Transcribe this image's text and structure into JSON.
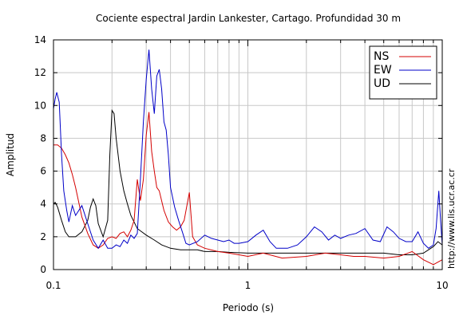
{
  "chart_data": {
    "type": "line",
    "title": "Cociente espectral Jardin Lankester, Cartago. Profundidad 30 m",
    "xlabel": "Periodo (s)",
    "ylabel": "Amplitud",
    "xscale": "log",
    "xlim": [
      0.1,
      10
    ],
    "ylim": [
      0,
      14
    ],
    "x_ticks": [
      "0.1",
      "1",
      "10"
    ],
    "y_ticks": [
      "0",
      "2",
      "4",
      "6",
      "8",
      "10",
      "12",
      "14"
    ],
    "grid": true,
    "legend_position": "top-right",
    "url_text": "http://www.lis.ucr.ac.cr",
    "series": [
      {
        "name": "NS",
        "color": "#d40000",
        "x": [
          0.1,
          0.105,
          0.11,
          0.115,
          0.12,
          0.125,
          0.13,
          0.14,
          0.15,
          0.16,
          0.17,
          0.18,
          0.19,
          0.2,
          0.21,
          0.22,
          0.23,
          0.24,
          0.25,
          0.26,
          0.27,
          0.28,
          0.29,
          0.3,
          0.31,
          0.32,
          0.33,
          0.34,
          0.35,
          0.37,
          0.39,
          0.41,
          0.43,
          0.45,
          0.47,
          0.5,
          0.52,
          0.55,
          0.6,
          0.7,
          0.8,
          0.9,
          1.0,
          1.2,
          1.5,
          2.0,
          2.5,
          3.0,
          3.5,
          4.0,
          5.0,
          6.0,
          7.0,
          8.0,
          9.0,
          10.0
        ],
        "values": [
          7.6,
          7.6,
          7.4,
          7.0,
          6.5,
          5.8,
          5.0,
          3.2,
          2.2,
          1.5,
          1.3,
          1.5,
          1.9,
          2.0,
          1.9,
          2.2,
          2.3,
          2.0,
          2.4,
          3.0,
          5.5,
          4.2,
          5.5,
          8.2,
          9.6,
          7.2,
          6.0,
          5.0,
          4.8,
          3.6,
          2.9,
          2.6,
          2.4,
          2.6,
          3.0,
          4.7,
          2.0,
          1.5,
          1.3,
          1.1,
          1.0,
          0.9,
          0.8,
          1.0,
          0.7,
          0.8,
          1.0,
          0.9,
          0.8,
          0.8,
          0.7,
          0.8,
          1.1,
          0.6,
          0.3,
          0.6
        ]
      },
      {
        "name": "EW",
        "color": "#0000c8",
        "x": [
          0.1,
          0.102,
          0.104,
          0.107,
          0.11,
          0.113,
          0.117,
          0.12,
          0.125,
          0.13,
          0.135,
          0.14,
          0.15,
          0.16,
          0.17,
          0.18,
          0.19,
          0.2,
          0.21,
          0.22,
          0.23,
          0.24,
          0.25,
          0.26,
          0.27,
          0.28,
          0.29,
          0.3,
          0.31,
          0.32,
          0.33,
          0.34,
          0.35,
          0.36,
          0.37,
          0.38,
          0.39,
          0.4,
          0.42,
          0.44,
          0.46,
          0.48,
          0.5,
          0.55,
          0.6,
          0.65,
          0.7,
          0.75,
          0.8,
          0.85,
          0.9,
          1.0,
          1.1,
          1.2,
          1.3,
          1.4,
          1.6,
          1.8,
          2.0,
          2.2,
          2.4,
          2.6,
          2.8,
          3.0,
          3.3,
          3.6,
          4.0,
          4.4,
          4.8,
          5.2,
          5.6,
          6.0,
          6.5,
          7.0,
          7.5,
          8.0,
          8.5,
          9.0,
          9.3,
          9.6,
          9.8,
          10.0
        ],
        "values": [
          9.8,
          10.4,
          10.8,
          10.2,
          7.0,
          4.8,
          3.6,
          2.9,
          3.9,
          3.3,
          3.6,
          3.9,
          2.8,
          1.8,
          1.3,
          1.8,
          1.3,
          1.3,
          1.5,
          1.4,
          1.8,
          1.6,
          2.1,
          1.9,
          2.2,
          5.5,
          9.0,
          11.6,
          13.4,
          11.0,
          9.5,
          11.8,
          12.2,
          11.0,
          9.0,
          8.5,
          7.0,
          5.0,
          3.8,
          3.0,
          2.3,
          1.6,
          1.5,
          1.7,
          2.1,
          1.9,
          1.8,
          1.7,
          1.8,
          1.6,
          1.6,
          1.7,
          2.1,
          2.4,
          1.7,
          1.3,
          1.3,
          1.5,
          2.0,
          2.6,
          2.3,
          1.8,
          2.1,
          1.9,
          2.1,
          2.2,
          2.5,
          1.8,
          1.7,
          2.6,
          2.3,
          1.9,
          1.7,
          1.7,
          2.3,
          1.6,
          1.3,
          1.5,
          2.5,
          4.8,
          3.0,
          1.5
        ]
      },
      {
        "name": "UD",
        "color": "#000000",
        "x": [
          0.1,
          0.102,
          0.105,
          0.11,
          0.115,
          0.12,
          0.13,
          0.14,
          0.15,
          0.155,
          0.16,
          0.165,
          0.17,
          0.18,
          0.19,
          0.195,
          0.2,
          0.205,
          0.21,
          0.22,
          0.23,
          0.24,
          0.25,
          0.27,
          0.3,
          0.33,
          0.36,
          0.4,
          0.45,
          0.5,
          0.55,
          0.6,
          0.7,
          0.8,
          1.0,
          1.5,
          2.0,
          3.0,
          4.0,
          5.0,
          6.0,
          7.0,
          8.0,
          9.0,
          9.5,
          10.0
        ],
        "values": [
          4.0,
          4.1,
          3.8,
          3.0,
          2.3,
          2.0,
          2.0,
          2.3,
          3.0,
          3.8,
          4.3,
          3.9,
          2.8,
          2.0,
          3.0,
          7.0,
          9.7,
          9.5,
          8.0,
          6.0,
          4.8,
          4.0,
          3.3,
          2.5,
          2.1,
          1.8,
          1.5,
          1.3,
          1.2,
          1.2,
          1.2,
          1.1,
          1.1,
          1.05,
          1.0,
          1.0,
          1.0,
          1.0,
          1.0,
          1.0,
          0.9,
          0.9,
          1.0,
          1.4,
          1.7,
          1.5
        ]
      }
    ]
  }
}
